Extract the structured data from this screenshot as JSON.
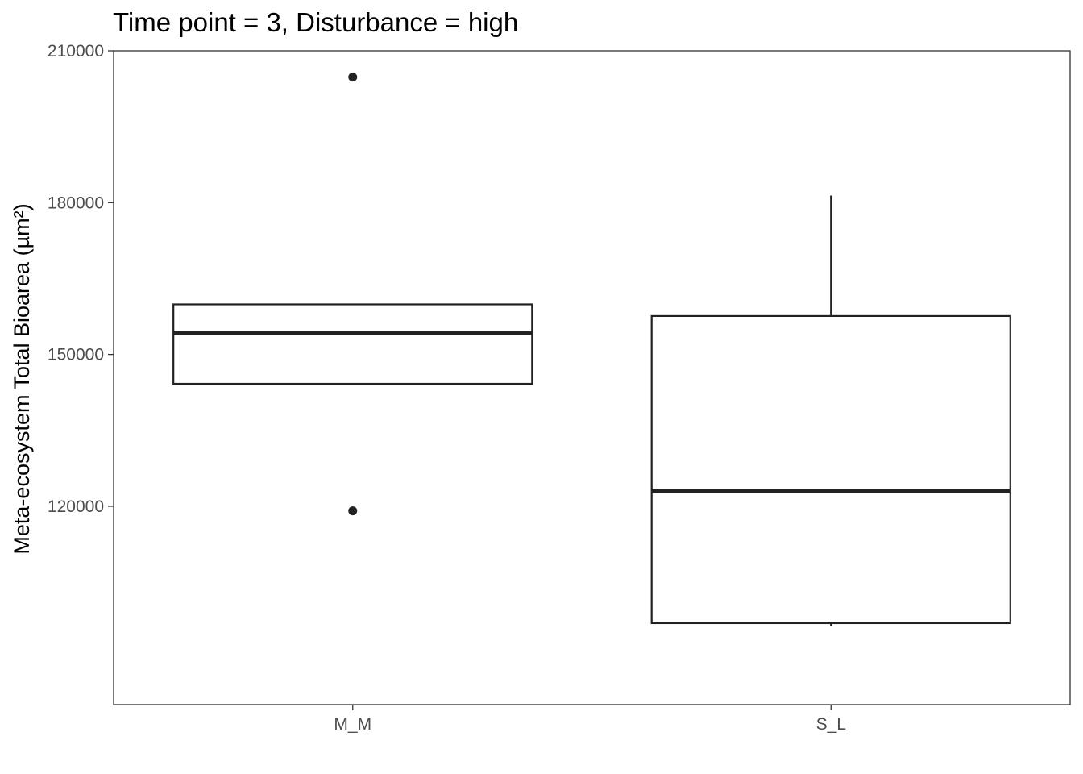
{
  "chart_data": {
    "type": "boxplot",
    "title": "Time point = 3, Disturbance = high",
    "xlabel": "",
    "ylabel": "Meta-ecosystem Total Bioarea (µm²)",
    "ylim": [
      80800,
      210000
    ],
    "yticks": [
      120000,
      150000,
      180000,
      210000
    ],
    "grid": false,
    "categories": [
      "M_M",
      "S_L"
    ],
    "boxes": [
      {
        "category": "M_M",
        "whisker_low": 144200,
        "q1": 144200,
        "median": 154200,
        "q3": 159900,
        "whisker_high": 159900,
        "outliers": [
          204800,
          119100
        ]
      },
      {
        "category": "S_L",
        "whisker_low": 96400,
        "q1": 96900,
        "median": 123000,
        "q3": 157600,
        "whisker_high": 181400,
        "outliers": []
      }
    ],
    "colors": {
      "stroke": "#222222",
      "outlier": "#222222",
      "axis": "#333333"
    }
  }
}
